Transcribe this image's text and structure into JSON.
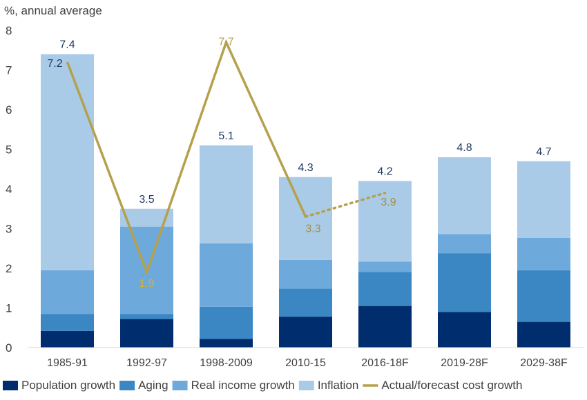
{
  "chart_data": {
    "type": "bar",
    "stacked": true,
    "ylabel": "%, annual average",
    "ylim": [
      0,
      8
    ],
    "yticks": [
      0,
      1,
      2,
      3,
      4,
      5,
      6,
      7,
      8
    ],
    "grid": false,
    "legend_position": "bottom",
    "categories": [
      "1985-91",
      "1992-97",
      "1998-2009",
      "2010-15",
      "2016-18F",
      "2019-28F",
      "2029-38F"
    ],
    "series": [
      {
        "name": "Population growth",
        "color": "#002d6e",
        "values": [
          0.42,
          0.72,
          0.22,
          0.78,
          1.05,
          0.9,
          0.65
        ]
      },
      {
        "name": "Aging",
        "color": "#3a87c4",
        "values": [
          0.43,
          0.13,
          0.81,
          0.71,
          0.86,
          1.48,
          1.3
        ]
      },
      {
        "name": "Real income growth",
        "color": "#6ea9dc",
        "values": [
          1.1,
          2.2,
          1.6,
          0.72,
          0.26,
          0.48,
          0.82
        ]
      },
      {
        "name": "Inflation",
        "color": "#a9cbe8",
        "values": [
          5.45,
          0.45,
          2.47,
          2.09,
          2.03,
          1.94,
          1.93
        ]
      }
    ],
    "totals": [
      "7.4",
      "3.5",
      "5.1",
      "4.3",
      "4.2",
      "4.8",
      "4.7"
    ],
    "line": {
      "name": "Actual/forecast cost growth",
      "color": "#b5a04c",
      "solid": [
        {
          "category": "1985-91",
          "value": 7.2,
          "label": "7.2"
        },
        {
          "category": "1992-97",
          "value": 1.9,
          "label": "1.9"
        },
        {
          "category": "1998-2009",
          "value": 7.7,
          "label": "7.7"
        },
        {
          "category": "2010-15",
          "value": 3.3,
          "label": "3.3"
        }
      ],
      "dotted": [
        {
          "category": "2010-15",
          "value": 3.3
        },
        {
          "category": "2016-18F",
          "value": 3.9,
          "label": "3.9"
        }
      ]
    }
  }
}
